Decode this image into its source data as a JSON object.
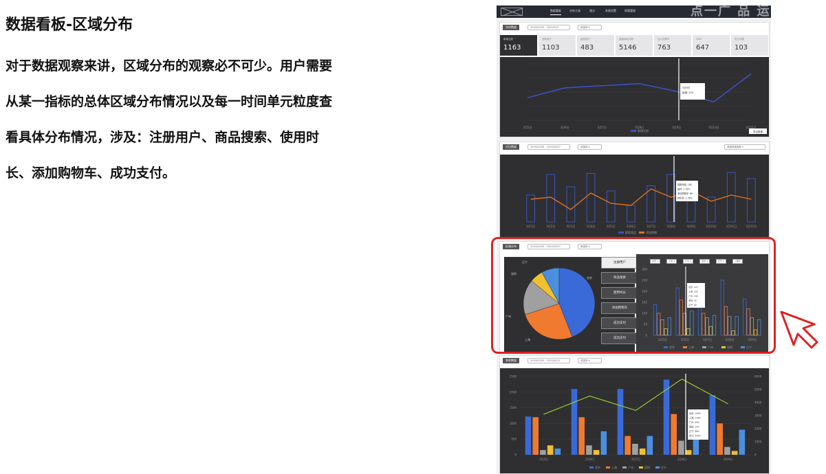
{
  "title": "数据看板-区域分布",
  "description_lines": [
    "对于数据观察来讲，区域分布的观察必不可少。用户需要",
    "从某一指标的总体区域分布情况以及每一时间单元粒度查",
    "看具体分布情况，涉及：注册用户、商品搜索、使用时",
    "长、添加购物车、成功支付。"
  ],
  "watermark": "点一广 品 运",
  "nav": [
    "数据看板",
    "分析工具",
    "埋点",
    "系统设置",
    "权限管理"
  ],
  "sections": {
    "overview": {
      "tag": "实时数据",
      "date": "2020/03/05 - 2020/03/?",
      "filter": "请选择 ▾"
    },
    "compare": {
      "tag": "对比数据",
      "date": "2020/03/05 - 2020/03/07",
      "filter": "请选择 ▾",
      "right_filter": "请选择各指标 ▾"
    },
    "region": {
      "tag": "区域分布",
      "date": "2020/03/05 - 2020/03/07",
      "filter": "请选择 ▾"
    },
    "trend": {
      "tag": "其他数据",
      "date": "2020/03/05 - 2020/03/11",
      "filter": "请选择 ▾"
    }
  },
  "metrics": [
    {
      "label": "新增注册",
      "value": "1163"
    },
    {
      "label": "活跃用户",
      "value": "1103"
    },
    {
      "label": "留存用户",
      "value": "483"
    },
    {
      "label": "搜索商品次数",
      "value": "5146"
    },
    {
      "label": "加入购物车",
      "value": "763"
    },
    {
      "label": "GMV",
      "value": "647"
    },
    {
      "label": "支付次数",
      "value": "103"
    }
  ],
  "line_x_labels": [
    "3月5日",
    "3月6日",
    "3月7日",
    "3月8日",
    "3月9日",
    "3月10日",
    "3月11日"
  ],
  "line_values": [
    160,
    230,
    245,
    260,
    205,
    130,
    330
  ],
  "line_legend": "新增注册",
  "line_button": "导出数据",
  "line_tooltip": [
    "3月9日",
    "新增: 205"
  ],
  "compare_x_labels": [
    "3月1日",
    "3月2日",
    "3月3日",
    "3月4日",
    "3月5日",
    "3月6日",
    "3月7日",
    "3月8日",
    "3月9日",
    "3月10日",
    "3月11日",
    "3月12日"
  ],
  "compare_bars": [
    130,
    230,
    170,
    235,
    150,
    80,
    175,
    230,
    190,
    120,
    240,
    210
  ],
  "compare_line": [
    110,
    120,
    60,
    140,
    90,
    80,
    160,
    120,
    150,
    100,
    130,
    110
  ],
  "compare_legend": [
    "搜索商品",
    "添加购物"
  ],
  "compare_tooltip": [
    "搜索商品: 180",
    "留存: 1.56%",
    "添加购物车: 86",
    "转化率: 1.56%"
  ],
  "region_menu": [
    "注册用户",
    "商品搜索",
    "使用时长",
    "添加购物车",
    "成功支付",
    "成功支付"
  ],
  "region_chips": [
    "北京 ×",
    "上海 ×",
    "广州 ×",
    "深圳 ×",
    "辽宁 ×",
    "+城市"
  ],
  "pie_labels": [
    "辽宁",
    "深圳",
    "广州",
    "上海",
    "北京"
  ],
  "pie_values": [
    8,
    6,
    16,
    26,
    44
  ],
  "pie_colors": [
    "#4b8fe0",
    "#f0c030",
    "#a0a0a0",
    "#f07a30",
    "#3a6ad8"
  ],
  "region_bar_x": [
    "3月5日",
    "3月6日",
    "3月7日",
    "3月8日",
    "3月9日"
  ],
  "region_bar_y_ticks": [
    "300",
    "250",
    "200",
    "150",
    "100",
    "50",
    "0"
  ],
  "region_bar_series": [
    {
      "name": "北京",
      "values": [
        140,
        215,
        190,
        250,
        165
      ]
    },
    {
      "name": "上海",
      "values": [
        100,
        160,
        100,
        130,
        120
      ]
    },
    {
      "name": "广州",
      "values": [
        70,
        100,
        80,
        85,
        80
      ]
    },
    {
      "name": "深圳",
      "values": [
        30,
        30,
        40,
        20,
        25
      ]
    },
    {
      "name": "辽宁",
      "values": [
        80,
        110,
        90,
        85,
        70
      ]
    }
  ],
  "region_tooltip": [
    "北京: 225",
    "上海: 160",
    "广州: 108",
    "深圳: 35",
    "辽宁: 90"
  ],
  "trend_x": [
    "3月5日",
    "3月6日",
    "3月7日",
    "3月8日",
    "3月9日"
  ],
  "trend_y_left": [
    "2500",
    "2000",
    "1500",
    "1000",
    "500",
    "0"
  ],
  "trend_y_right": [
    "6000",
    "5000",
    "4000",
    "3000",
    "2000",
    "1000",
    "0"
  ],
  "trend_series": [
    {
      "name": "北京",
      "values": [
        1220,
        2100,
        2100,
        2400,
        1900
      ]
    },
    {
      "name": "上海",
      "values": [
        1200,
        1200,
        600,
        1300,
        1000
      ]
    },
    {
      "name": "广州",
      "values": [
        150,
        300,
        350,
        450,
        250
      ]
    },
    {
      "name": "深圳",
      "values": [
        300,
        150,
        200,
        150,
        120
      ]
    },
    {
      "name": "辽宁",
      "values": [
        200,
        750,
        600,
        800,
        800
      ]
    }
  ],
  "trend_line": [
    3100,
    4500,
    3400,
    5800,
    3900
  ],
  "trend_tooltip": [
    "北京: 2400",
    "上海: 1300",
    "广州: 450",
    "深圳: 150",
    "辽宁: 800",
    "合计: 5100"
  ],
  "colors": {
    "blue": "#3a6ad8",
    "orange": "#f07a30",
    "gray": "#a0a0a0",
    "yellow": "#f0c030",
    "lightblue": "#4b8fe0",
    "green": "#9acd32",
    "highlight": "#dd2222"
  }
}
